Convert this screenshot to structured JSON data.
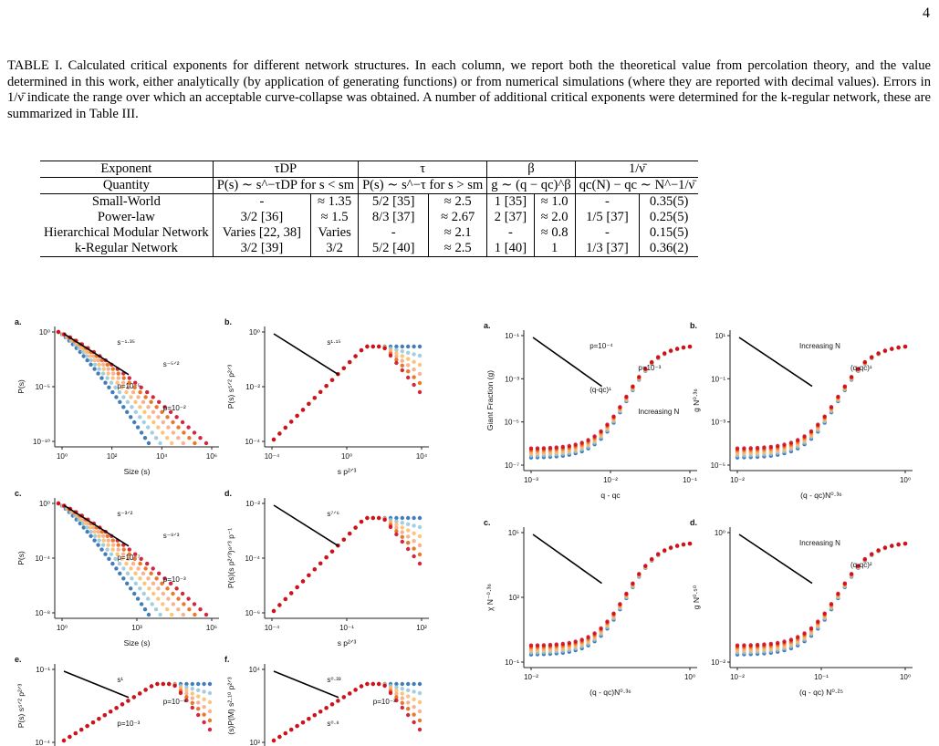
{
  "page_number": "4",
  "caption": "TABLE I. Calculated critical exponents for different network structures. In each column, we report both the theoretical value from percolation theory, and the value determined in this work, either analytically (by application of generating functions) or from numerical simulations (where they are reported with decimal values). Errors in 1/ν̄ indicate the range over which an acceptable curve-collapse was obtained. A number of additional critical exponents were determined for the k-regular network, these are summarized in Table III.",
  "table": {
    "header": {
      "label": "Exponent",
      "tau_dp": "τDP",
      "tau": "τ",
      "beta": "β",
      "nu": "1/ν̄"
    },
    "quantity": {
      "label": "Quantity",
      "tau_dp": "P(s) ∼ s^−τDP for s < sm",
      "tau": "P(s) ∼ s^−τ for s > sm",
      "beta": "g ∼ (q − qc)^β",
      "nu": "qc(N) − qc ∼ N^−1/ν̄"
    },
    "rows": [
      {
        "name": "Small-World",
        "c": [
          "-",
          "≈ 1.35",
          "5/2 [35]",
          "≈ 2.5",
          "1 [35]",
          "≈ 1.0",
          "-",
          "0.35(5)"
        ]
      },
      {
        "name": "Power-law",
        "c": [
          "3/2 [36]",
          "≈ 1.5",
          "8/3 [37]",
          "≈ 2.67",
          "2 [37]",
          "≈ 2.0",
          "1/5 [37]",
          "0.25(5)"
        ]
      },
      {
        "name": "Hierarchical Modular Network",
        "c": [
          "Varies [22, 38]",
          "Varies",
          "-",
          "≈ 2.1",
          "-",
          "≈ 0.8",
          "-",
          "0.15(5)"
        ]
      },
      {
        "name": "k-Regular Network",
        "c": [
          "3/2 [39]",
          "3/2",
          "5/2 [40]",
          "≈ 2.5",
          "1 [40]",
          "1",
          "1/3 [37]",
          "0.36(2)"
        ]
      }
    ]
  },
  "figure": {
    "left": {
      "a": {
        "label": "a.",
        "ylabel": "P(s)",
        "xlabel": "Size (s)",
        "yticks": [
          "10⁰",
          "10⁻⁵",
          "10⁻¹⁰"
        ],
        "xticks": [
          "10⁰",
          "10²",
          "10⁴",
          "10⁶"
        ],
        "notes": [
          "s⁻¹·³⁵",
          "s⁻⁵ᐟ²",
          "p=10⁻⁵",
          "p=10⁻²"
        ]
      },
      "b": {
        "label": "b.",
        "ylabel": "P(s) s⁵ᐟ² p²ᐟ³",
        "xlabel": "s p²ᐟ³",
        "yticks": [
          "10⁰",
          "10⁻²",
          "10⁻⁴"
        ],
        "xticks": [
          "10⁻⁴",
          "10⁰",
          "10⁴"
        ],
        "notes": [
          "s¹·¹⁵"
        ]
      },
      "c": {
        "label": "c.",
        "ylabel": "P(s)",
        "xlabel": "Size (s)",
        "yticks": [
          "10⁰",
          "10⁻⁴",
          "10⁻⁸"
        ],
        "xticks": [
          "10⁰",
          "10³",
          "10⁶"
        ],
        "notes": [
          "s⁻³ᐟ²",
          "s⁻⁸ᐟ³",
          "p=10⁻⁷",
          "p=10⁻³"
        ]
      },
      "d": {
        "label": "d.",
        "ylabel": "P(s)(s p²ᐟ³)⁸ᐟ³ p⁻¹",
        "xlabel": "s p²ᐟ³",
        "yticks": [
          "10⁻²",
          "10⁻⁴",
          "10⁻⁶"
        ],
        "xticks": [
          "10⁻⁴",
          "10⁻¹",
          "10²"
        ],
        "notes": [
          "s⁷ᐟ⁶"
        ]
      },
      "e": {
        "label": "e.",
        "ylabel": "P(s) s⁵ᐟ² p²ᐟ³",
        "yticks": [
          "10⁻¹",
          "10⁻⁴"
        ],
        "notes": [
          "s¹",
          "p=10⁻⁹",
          "p=10⁻³"
        ]
      },
      "f": {
        "label": "f.",
        "ylabel": "(s)P(M) s²·¹⁰ p²ᐟ³",
        "yticks": [
          "10⁴",
          "10²"
        ],
        "notes": [
          "s⁰·³³",
          "p=10⁻³",
          "s⁰·⁸"
        ]
      }
    },
    "right": {
      "a": {
        "label": "a.",
        "ylabel": "Giant Fraction (g)",
        "xlabel": "q - qc",
        "yticks": [
          "10⁻¹",
          "10⁻³",
          "10⁻⁵",
          "10⁻⁷"
        ],
        "xticks": [
          "10⁻³",
          "10⁻²",
          "10⁻¹"
        ],
        "notes": [
          "p=10⁻⁴",
          "p=10⁻³",
          "(q-qc)¹",
          "Increasing N"
        ]
      },
      "b": {
        "label": "b.",
        "ylabel": "g N⁰·³⁶",
        "xlabel": "(q - qc)N⁰·³⁶",
        "yticks": [
          "10¹",
          "10⁻¹",
          "10⁻³",
          "10⁻⁵"
        ],
        "xticks": [
          "10⁻²",
          "10⁰"
        ],
        "notes": [
          "Increasing N",
          "(q-qc)¹"
        ]
      },
      "c": {
        "label": "c.",
        "ylabel": "χ N⁻⁰·³⁶",
        "xlabel": "(q - qc)N⁰·³⁶",
        "yticks": [
          "10⁵",
          "10²",
          "10⁻¹"
        ],
        "xticks": [
          "10⁻²",
          "10⁰"
        ]
      },
      "d": {
        "label": "d.",
        "ylabel": "g N⁰·⁵⁰",
        "xlabel": "(q - qc) N⁰·²⁵",
        "yticks": [
          "10⁰",
          "10⁻²"
        ],
        "xticks": [
          "10⁻²",
          "10⁻¹",
          "10⁰"
        ],
        "notes": [
          "Increasing N",
          "(q-qc)²"
        ]
      }
    },
    "colors": [
      "#2166ac",
      "#92c5de",
      "#fdb863",
      "#f4a582",
      "#e66101",
      "#ca0020"
    ]
  }
}
